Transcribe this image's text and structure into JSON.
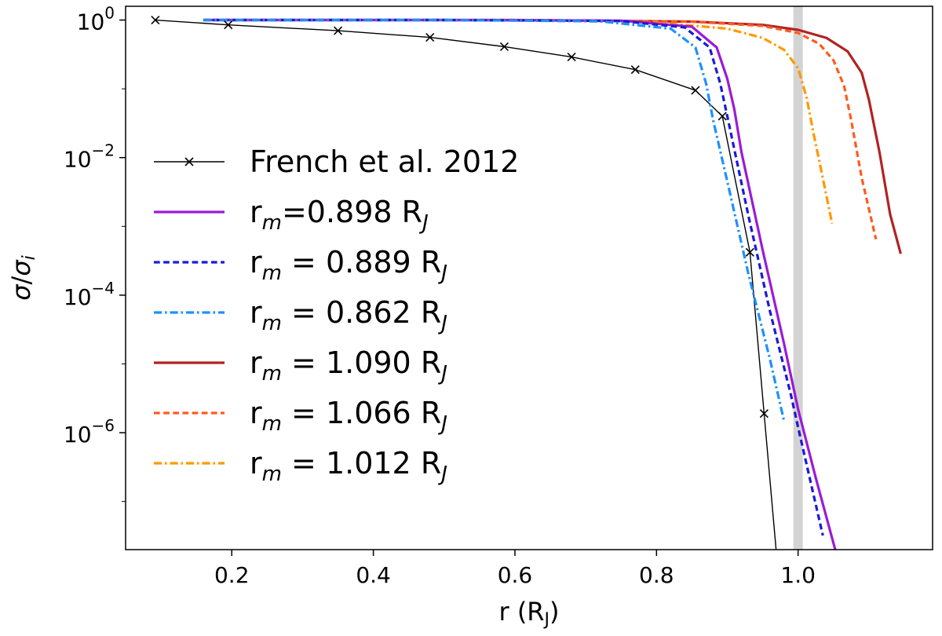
{
  "chart_data": {
    "type": "line",
    "xlabel": "r (RJ)",
    "ylabel": "σ/σi",
    "xlim": [
      0.05,
      1.19
    ],
    "ylim_log10": [
      -7.7,
      0.2
    ],
    "yscale": "log",
    "x_ticks": [
      {
        "value": 0.2,
        "label": "0.2"
      },
      {
        "value": 0.4,
        "label": "0.4"
      },
      {
        "value": 0.6,
        "label": "0.6"
      },
      {
        "value": 0.8,
        "label": "0.8"
      },
      {
        "value": 1.0,
        "label": "1.0"
      }
    ],
    "y_ticks": [
      {
        "exp": 0,
        "base": "10",
        "sup": "0"
      },
      {
        "exp": -2,
        "base": "10",
        "sup": "−2"
      },
      {
        "exp": -4,
        "base": "10",
        "sup": "−4"
      },
      {
        "exp": -6,
        "base": "10",
        "sup": "−6"
      }
    ],
    "vertical_band": {
      "x": 1.0,
      "color": "#d3d3d3"
    },
    "legend_position": "left",
    "series": [
      {
        "name": "French et al. 2012",
        "name_parts": [
          "French et al. 2012",
          "",
          "",
          ""
        ],
        "color": "#000000",
        "style": "solid",
        "marker": "x",
        "points": [
          [
            0.092,
            1.0
          ],
          [
            0.195,
            0.85
          ],
          [
            0.35,
            0.7
          ],
          [
            0.48,
            0.56
          ],
          [
            0.585,
            0.41
          ],
          [
            0.68,
            0.29
          ],
          [
            0.77,
            0.19
          ],
          [
            0.855,
            0.095
          ],
          [
            0.893,
            0.04
          ],
          [
            0.932,
            0.00042
          ],
          [
            0.952,
            1.9e-06
          ],
          [
            0.97,
            1.5e-08
          ]
        ]
      },
      {
        "name": "rm=0.898 RJ",
        "name_parts": [
          "r",
          "m",
          "=0.898 R",
          "J"
        ],
        "color": "#9b1bd6",
        "style": "solid",
        "points": [
          [
            0.16,
            1.0
          ],
          [
            0.5,
            1.0
          ],
          [
            0.75,
            0.98
          ],
          [
            0.85,
            0.8
          ],
          [
            0.885,
            0.4
          ],
          [
            0.9,
            0.14
          ],
          [
            0.91,
            0.05
          ],
          [
            0.92,
            0.012
          ],
          [
            0.95,
            0.00045
          ],
          [
            0.98,
            2e-05
          ],
          [
            1.0,
            2.2e-06
          ],
          [
            1.025,
            2.2e-07
          ],
          [
            1.055,
            1.6e-08
          ]
        ]
      },
      {
        "name": "rm = 0.889 RJ",
        "name_parts": [
          "r",
          "m",
          " = 0.889 R",
          "J"
        ],
        "color": "#1a1adb",
        "style": "dashed",
        "points": [
          [
            0.16,
            1.0
          ],
          [
            0.5,
            1.0
          ],
          [
            0.75,
            0.97
          ],
          [
            0.84,
            0.78
          ],
          [
            0.875,
            0.4
          ],
          [
            0.89,
            0.12
          ],
          [
            0.9,
            0.04
          ],
          [
            0.93,
            0.0014
          ],
          [
            0.96,
            6e-05
          ],
          [
            0.99,
            3.5e-06
          ],
          [
            1.0,
            1.2e-06
          ],
          [
            1.035,
            3.2e-08
          ]
        ]
      },
      {
        "name": "rm = 0.862 RJ",
        "name_parts": [
          "r",
          "m",
          " = 0.862 R",
          "J"
        ],
        "color": "#1e90ff",
        "style": "dashdot",
        "points": [
          [
            0.16,
            1.0
          ],
          [
            0.5,
            1.0
          ],
          [
            0.72,
            0.96
          ],
          [
            0.82,
            0.75
          ],
          [
            0.855,
            0.4
          ],
          [
            0.87,
            0.12
          ],
          [
            0.88,
            0.035
          ],
          [
            0.9,
            0.0045
          ],
          [
            0.93,
            0.0002
          ],
          [
            0.96,
            1.2e-05
          ],
          [
            0.98,
            1.5e-06
          ]
        ]
      },
      {
        "name": "rm = 1.090 RJ",
        "name_parts": [
          "r",
          "m",
          " = 1.090 R",
          "J"
        ],
        "color": "#b22222",
        "style": "solid",
        "points": [
          [
            0.16,
            1.0
          ],
          [
            0.6,
            1.0
          ],
          [
            0.85,
            0.95
          ],
          [
            0.95,
            0.85
          ],
          [
            1.0,
            0.72
          ],
          [
            1.04,
            0.55
          ],
          [
            1.07,
            0.35
          ],
          [
            1.09,
            0.17
          ],
          [
            1.1,
            0.07
          ],
          [
            1.115,
            0.012
          ],
          [
            1.13,
            0.0015
          ],
          [
            1.145,
            0.0004
          ]
        ]
      },
      {
        "name": "rm = 1.066 RJ",
        "name_parts": [
          "r",
          "m",
          " = 1.066 R",
          "J"
        ],
        "color": "#ff5a1f",
        "style": "dashed",
        "points": [
          [
            0.16,
            1.0
          ],
          [
            0.6,
            1.0
          ],
          [
            0.85,
            0.95
          ],
          [
            0.95,
            0.82
          ],
          [
            1.0,
            0.65
          ],
          [
            1.03,
            0.45
          ],
          [
            1.05,
            0.26
          ],
          [
            1.065,
            0.11
          ],
          [
            1.075,
            0.035
          ],
          [
            1.09,
            0.005
          ],
          [
            1.11,
            0.00065
          ]
        ]
      },
      {
        "name": "rm = 1.012 RJ",
        "name_parts": [
          "r",
          "m",
          " = 1.012 R",
          "J"
        ],
        "color": "#ff9900",
        "style": "dashdot",
        "points": [
          [
            0.16,
            1.0
          ],
          [
            0.6,
            1.0
          ],
          [
            0.8,
            0.92
          ],
          [
            0.9,
            0.75
          ],
          [
            0.95,
            0.55
          ],
          [
            0.98,
            0.37
          ],
          [
            1.0,
            0.2
          ],
          [
            1.012,
            0.075
          ],
          [
            1.022,
            0.022
          ],
          [
            1.035,
            0.005
          ],
          [
            1.048,
            0.0011
          ]
        ]
      }
    ]
  }
}
